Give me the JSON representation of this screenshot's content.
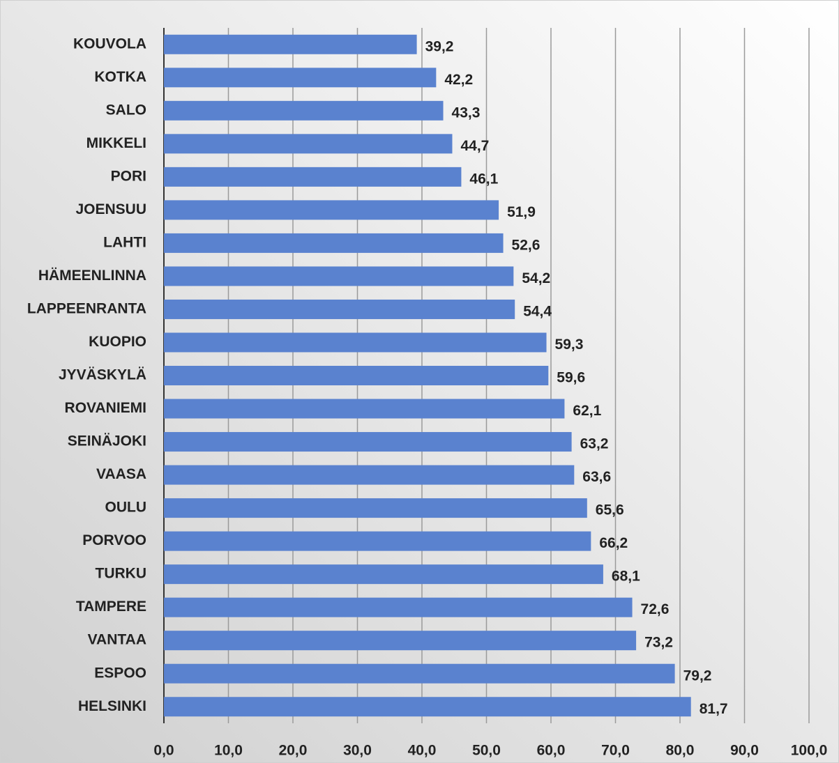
{
  "chart_data": {
    "type": "bar",
    "orientation": "horizontal",
    "categories": [
      "KOUVOLA",
      "KOTKA",
      "SALO",
      "MIKKELI",
      "PORI",
      "JOENSUU",
      "LAHTI",
      "HÄMEENLINNA",
      "LAPPEENRANTA",
      "KUOPIO",
      "JYVÄSKYLÄ",
      "ROVANIEMI",
      "SEINÄJOKI",
      "VAASA",
      "OULU",
      "PORVOO",
      "TURKU",
      "TAMPERE",
      "VANTAA",
      "ESPOO",
      "HELSINKI"
    ],
    "values": [
      39.2,
      42.2,
      43.3,
      44.7,
      46.1,
      51.9,
      52.6,
      54.2,
      54.4,
      59.3,
      59.6,
      62.1,
      63.2,
      63.6,
      65.6,
      66.2,
      68.1,
      72.6,
      73.2,
      79.2,
      81.7
    ],
    "value_labels": [
      "39,2",
      "42,2",
      "43,3",
      "44,7",
      "46,1",
      "51,9",
      "52,6",
      "54,2",
      "54,4",
      "59,3",
      "59,6",
      "62,1",
      "63,2",
      "63,6",
      "65,6",
      "66,2",
      "68,1",
      "72,6",
      "73,2",
      "79,2",
      "81,7"
    ],
    "color": "#5a82cf",
    "xlim": [
      0,
      100
    ],
    "xticks": [
      {
        "value": 0,
        "label": "0,0"
      },
      {
        "value": 10,
        "label": "10,0"
      },
      {
        "value": 20,
        "label": "20,0"
      },
      {
        "value": 30,
        "label": "30,0"
      },
      {
        "value": 40,
        "label": "40,0"
      },
      {
        "value": 50,
        "label": "50,0"
      },
      {
        "value": 60,
        "label": "60,0"
      },
      {
        "value": 70,
        "label": "70,0"
      },
      {
        "value": 80,
        "label": "80,0"
      },
      {
        "value": 90,
        "label": "90,0"
      },
      {
        "value": 100,
        "label": "100,0"
      }
    ],
    "grid": true
  }
}
